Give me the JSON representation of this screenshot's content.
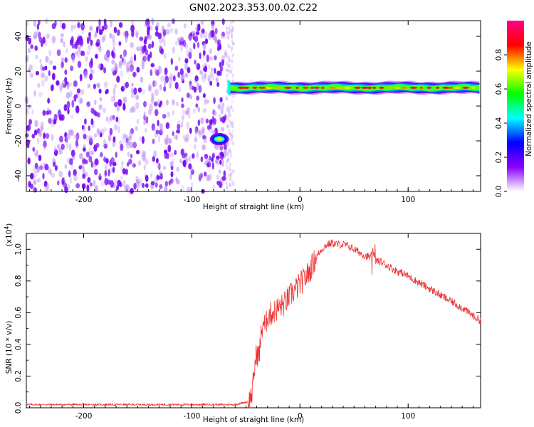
{
  "title": "GN02.2023.353.00.02.C22",
  "chart_data": [
    {
      "type": "heatmap",
      "xlabel": "Height of straight line (km)",
      "ylabel": "Frequency (Hz)",
      "xlim": [
        -253,
        167
      ],
      "ylim": [
        -49,
        49
      ],
      "x_ticks": [
        -200,
        -100,
        0,
        100
      ],
      "y_ticks": [
        -40,
        -20,
        0,
        20,
        40
      ],
      "x_tick_labels": [
        "-200",
        "-100",
        "0",
        "100"
      ],
      "y_tick_labels": [
        "-40",
        "-20",
        "0",
        "20",
        "40"
      ],
      "colorbar": {
        "label": "Normalized spectral amplitude",
        "range": [
          0,
          1
        ],
        "ticks": [
          0,
          0.2,
          0.4,
          0.6,
          0.8
        ],
        "tick_labels": [
          "0.0",
          "0.2",
          "0.4",
          "0.6",
          "0.8"
        ],
        "colormap": [
          "#ffffff",
          "#8b00ff",
          "#0000ff",
          "#00ffff",
          "#00ff00",
          "#ffff00",
          "#ff0000",
          "#ff0080"
        ]
      },
      "noise_region": {
        "x": [
          -253,
          -68
        ],
        "y": [
          -49,
          49
        ],
        "amplitude_range": [
          0,
          0.15
        ]
      },
      "signal_band": {
        "x": [
          -67,
          167
        ],
        "frequency": 10.5,
        "half_width": 2.5,
        "peak_amplitude": 1.0
      },
      "early_signal": {
        "x": [
          -82,
          -67
        ],
        "frequency": -19,
        "peak_amplitude": 0.7
      },
      "grid": false
    },
    {
      "type": "line",
      "xlabel": "Height of straight line (km)",
      "ylabel": "SNR (10 * v/v)",
      "y_multiplier_label": "(x10",
      "y_multiplier_exp": "4",
      "y_multiplier_close": ")",
      "xlim": [
        -253,
        167
      ],
      "ylim": [
        0,
        1.1
      ],
      "x_ticks": [
        -200,
        -100,
        0,
        100
      ],
      "y_ticks": [
        0.0,
        0.2,
        0.4,
        0.6,
        0.8,
        1.0
      ],
      "x_tick_labels": [
        "-200",
        "-100",
        "0",
        "100"
      ],
      "y_tick_labels": [
        "0.0",
        "0.2",
        "0.4",
        "0.6",
        "0.8",
        "1.0"
      ],
      "series": [
        {
          "color": "#ee3030",
          "x": [
            -253,
            -200,
            -150,
            -100,
            -60,
            -47,
            -44,
            -42,
            -40,
            -38,
            -36,
            -34,
            -32,
            -30,
            -25,
            -20,
            -15,
            -10,
            -5,
            0,
            5,
            10,
            15,
            20,
            25,
            30,
            35,
            40,
            45,
            50,
            55,
            60,
            65,
            68,
            70,
            75,
            80,
            85,
            90,
            95,
            100,
            110,
            120,
            130,
            140,
            150,
            160,
            167
          ],
          "y": [
            0.02,
            0.02,
            0.02,
            0.02,
            0.02,
            0.04,
            0.1,
            0.25,
            0.35,
            0.32,
            0.45,
            0.55,
            0.5,
            0.58,
            0.6,
            0.63,
            0.65,
            0.7,
            0.74,
            0.78,
            0.82,
            0.88,
            0.95,
            1.0,
            1.03,
            1.04,
            1.03,
            1.03,
            1.02,
            1.0,
            0.98,
            0.96,
            0.95,
            0.98,
            0.93,
            0.92,
            0.9,
            0.88,
            0.86,
            0.85,
            0.83,
            0.79,
            0.75,
            0.71,
            0.67,
            0.63,
            0.58,
            0.55
          ]
        }
      ],
      "grid": false
    }
  ]
}
